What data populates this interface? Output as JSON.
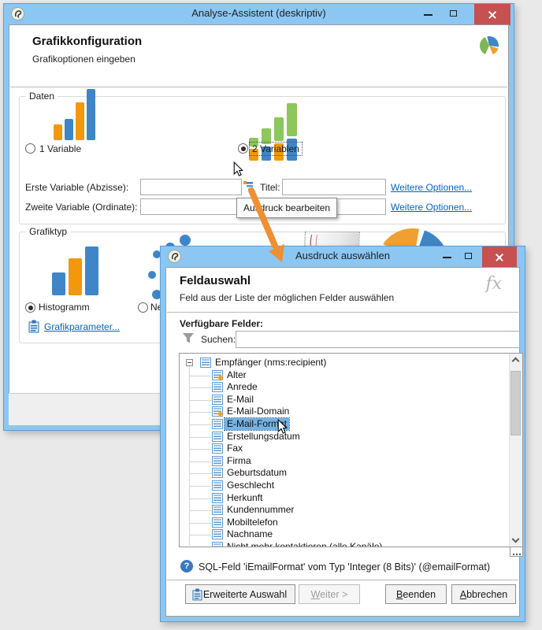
{
  "window1": {
    "title": "Analyse-Assistent (deskriptiv)",
    "heading": "Grafikkonfiguration",
    "subheading": "Grafikoptionen eingeben",
    "tooltip": "Ausdruck bearbeiten",
    "daten": {
      "label": "Daten",
      "option1": "1 Variable",
      "option2": "2 Variablen",
      "first_var_label": "Erste Variable (Abzisse):",
      "second_var_label": "Zweite Variable (Ordinate):",
      "title_label": "Titel:",
      "first_var_value": "",
      "second_var_value": "",
      "title_value": "",
      "more_options1": "Weitere Optionen...",
      "more_options2": "Weitere Optionen..."
    },
    "grafiktyp": {
      "label": "Grafiktyp",
      "option_histogram": "Histogramm",
      "option_net_partial": "Net",
      "params_link": "Grafikparameter..."
    }
  },
  "window2": {
    "title": "Ausdruck auswählen",
    "heading": "Feldauswahl",
    "subheading": "Feld aus der Liste der möglichen Felder auswählen",
    "fx_badge": "fx",
    "available_fields_label": "Verfügbare Felder:",
    "search_label": "Suchen:",
    "search_value": "",
    "tree": {
      "root_label": "Empfänger (nms:recipient)",
      "items": [
        {
          "label": "Alter",
          "gear": true
        },
        {
          "label": "Anrede"
        },
        {
          "label": "E-Mail"
        },
        {
          "label": "E-Mail-Domain",
          "gear": true
        },
        {
          "label": "E-Mail-Format",
          "selected": true
        },
        {
          "label": "Erstellungsdatum"
        },
        {
          "label": "Fax"
        },
        {
          "label": "Firma"
        },
        {
          "label": "Geburtsdatum"
        },
        {
          "label": "Geschlecht"
        },
        {
          "label": "Herkunft"
        },
        {
          "label": "Kundennummer"
        },
        {
          "label": "Mobiltelefon"
        },
        {
          "label": "Nachname"
        },
        {
          "label": "Nicht mehr kontaktieren (alle Kanäle)",
          "partial": true
        }
      ]
    },
    "status_text": "SQL-Feld 'iEmailFormat' vom Typ 'Integer (8 Bits)' (@emailFormat)",
    "buttons": {
      "advanced": "Erweiterte Auswahl",
      "next": "Weiter >",
      "finish": "Beenden",
      "cancel": "Abbrechen"
    }
  },
  "colors": {
    "frame_blue": "#8cc7f3",
    "close_red": "#c75050",
    "bar_blue": "#3e86c8",
    "bar_orange": "#f2980a",
    "bar_green": "#8dc65a",
    "link_blue": "#0563c1",
    "selection_blue": "#74b2e4"
  }
}
